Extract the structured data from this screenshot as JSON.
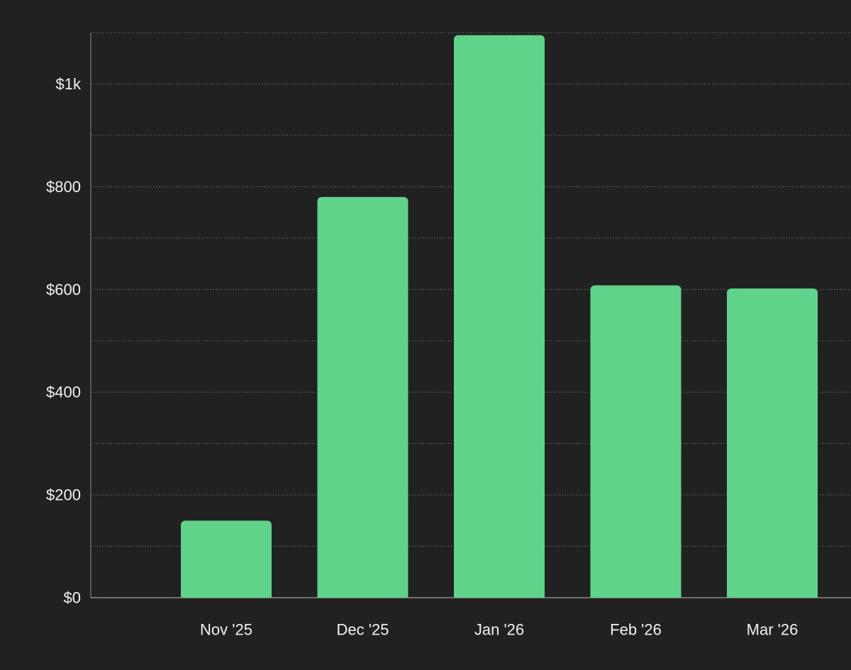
{
  "chart_data": {
    "type": "bar",
    "categories": [
      "Nov '25",
      "Dec '25",
      "Jan '26",
      "Feb '26",
      "Mar '26"
    ],
    "values": [
      150,
      780,
      1095,
      608,
      602
    ],
    "ylim": [
      0,
      1100
    ],
    "y_ticks": [
      0,
      200,
      400,
      600,
      800,
      1000
    ],
    "y_tick_labels": [
      "$0",
      "$200",
      "$400",
      "$600",
      "$800",
      "$1k"
    ],
    "grid": true,
    "title": "",
    "xlabel": "",
    "ylabel": ""
  },
  "colors": {
    "background": "#212121",
    "bar": "#5fd38a",
    "axis_text": "#f2f2f2",
    "grid": "#5a5a5a",
    "axis_line": "#8a8a8a"
  }
}
